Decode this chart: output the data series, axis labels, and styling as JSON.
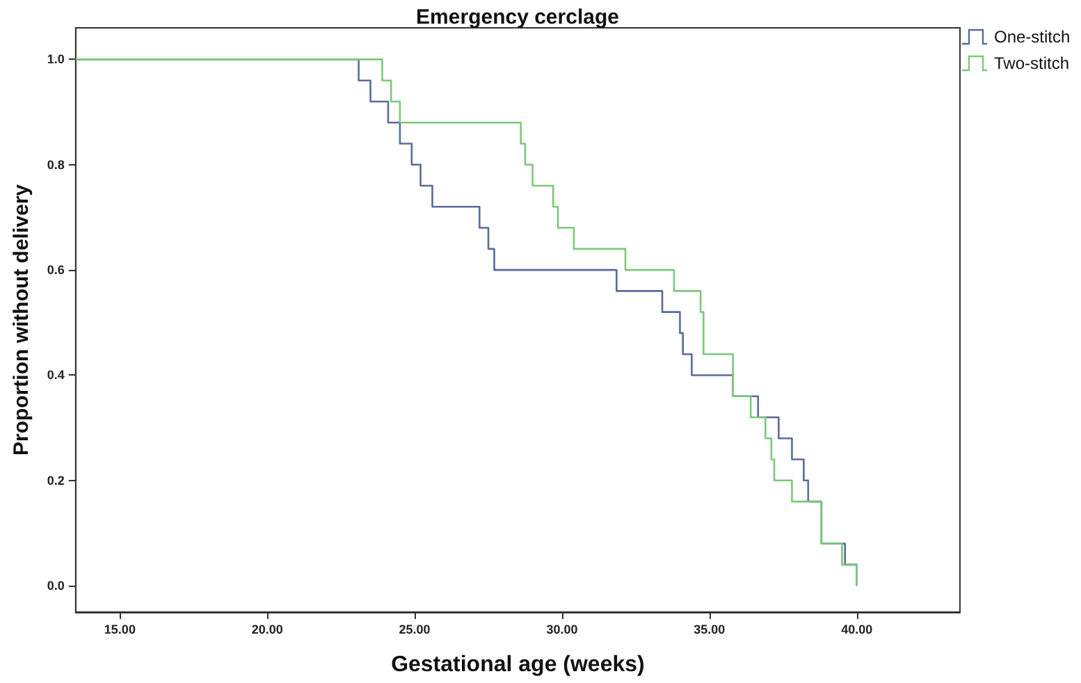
{
  "chart_data": {
    "type": "step",
    "title": "Emergency cerclage",
    "xlabel": "Gestational age (weeks)",
    "ylabel": "Proportion without delivery",
    "xlim": [
      13.5,
      43.5
    ],
    "xticks": [
      {
        "value": 15,
        "label": "15.00"
      },
      {
        "value": 20,
        "label": "20.00"
      },
      {
        "value": 25,
        "label": "25.00"
      },
      {
        "value": 30,
        "label": "30.00"
      },
      {
        "value": 35,
        "label": "35.00"
      },
      {
        "value": 40,
        "label": "40.00"
      }
    ],
    "ylim": [
      -0.05,
      1.06
    ],
    "yticks": [
      {
        "value": 0,
        "label": "0.0"
      },
      {
        "value": 0.2,
        "label": "0.2"
      },
      {
        "value": 0.4,
        "label": "0.4"
      },
      {
        "value": 0.6,
        "label": "0.6"
      },
      {
        "value": 0.8,
        "label": "0.8"
      },
      {
        "value": 1,
        "label": "1.0"
      }
    ],
    "grid": false,
    "legend": "top right",
    "marker": "none",
    "line_style": "solid",
    "series": [
      {
        "name": "One-stitch",
        "color": "#5b6a9c",
        "x": [
          13.5,
          23.1,
          23.5,
          24.1,
          24.5,
          24.9,
          25.2,
          25.6,
          27.2,
          27.5,
          27.7,
          31.85,
          33.4,
          34.0,
          34.1,
          34.4,
          35.8,
          36.65,
          37.35,
          37.8,
          38.2,
          38.35,
          38.8,
          39.6,
          40.0
        ],
        "values": [
          1,
          0.96,
          0.92,
          0.88,
          0.84,
          0.8,
          0.76,
          0.72,
          0.68,
          0.64,
          0.6,
          0.56,
          0.52,
          0.48,
          0.44,
          0.4,
          0.36,
          0.32,
          0.28,
          0.24,
          0.2,
          0.16,
          0.08,
          0.04,
          0.0
        ]
      },
      {
        "name": "Two-stitch",
        "color": "#7cc87a",
        "x": [
          13.5,
          23.9,
          24.2,
          24.5,
          28.6,
          28.75,
          29.0,
          29.7,
          29.86,
          30.4,
          32.15,
          33.8,
          34.7,
          34.8,
          35.8,
          36.4,
          36.9,
          37.1,
          37.2,
          37.8,
          38.8,
          39.5,
          40.0
        ],
        "values": [
          1,
          0.96,
          0.92,
          0.88,
          0.84,
          0.8,
          0.76,
          0.72,
          0.68,
          0.64,
          0.6,
          0.56,
          0.52,
          0.44,
          0.36,
          0.32,
          0.28,
          0.24,
          0.2,
          0.16,
          0.08,
          0.04,
          0.0
        ]
      }
    ]
  }
}
